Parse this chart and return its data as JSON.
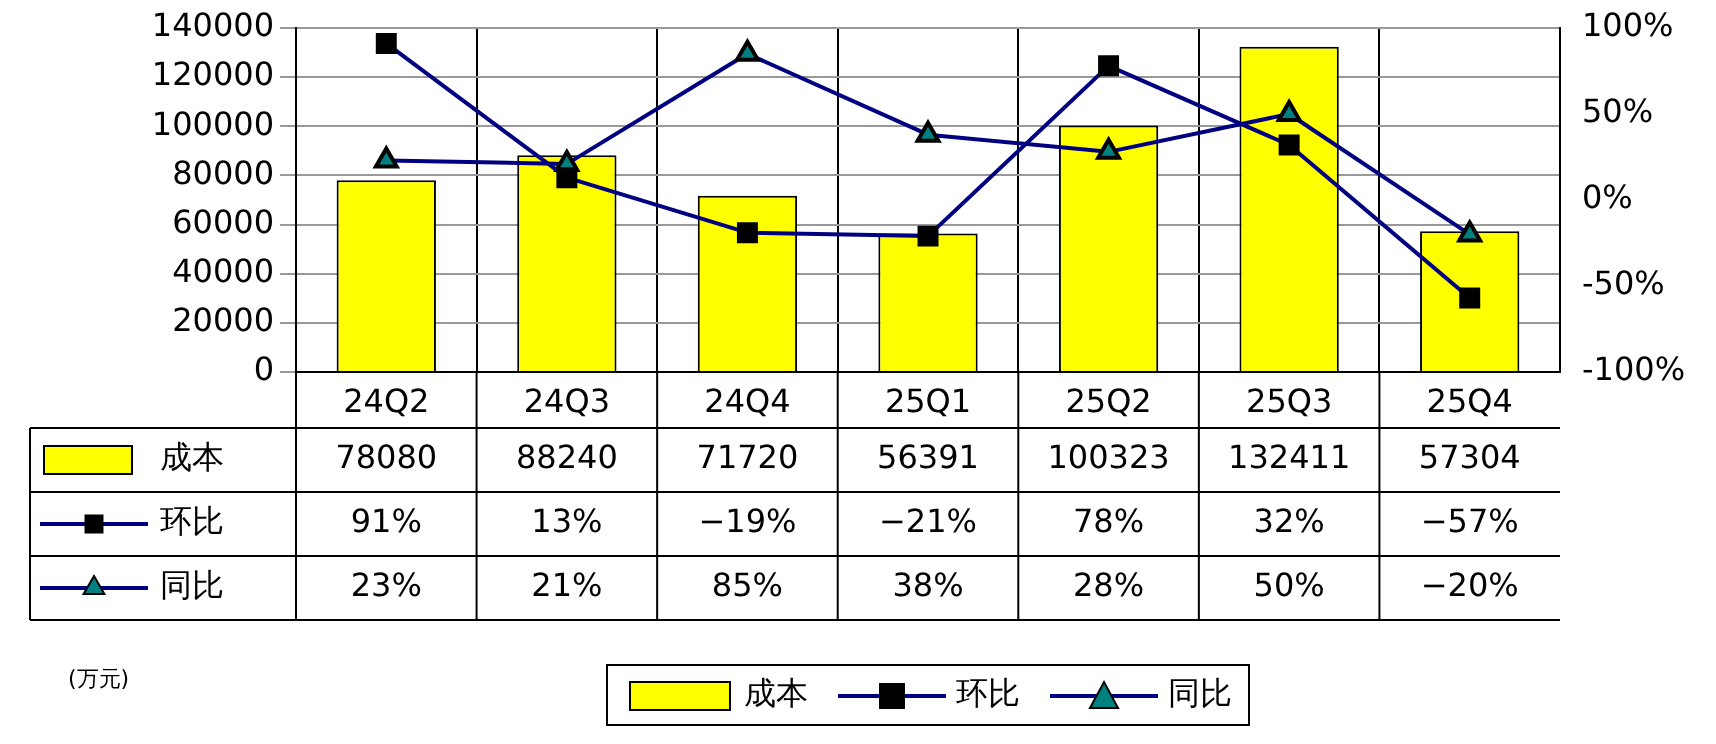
{
  "chart_data": {
    "type": "bar",
    "categories": [
      "24Q2",
      "24Q3",
      "24Q4",
      "25Q1",
      "25Q2",
      "25Q3",
      "25Q4"
    ],
    "series": [
      {
        "name": "成本",
        "color": "#ffff00",
        "values": [
          78080,
          88240,
          71720,
          56391,
          100323,
          132411,
          57304
        ],
        "value_labels": [
          "78080",
          "88240",
          "71720",
          "56391",
          "100323",
          "132411",
          "57304"
        ]
      },
      {
        "name": "环比",
        "type": "line",
        "axis": "y2",
        "marker": "square",
        "color": "#000080",
        "values": [
          91,
          13,
          -19,
          -21,
          78,
          32,
          -57
        ],
        "value_labels": [
          "91%",
          "13%",
          "−19%",
          "−21%",
          "78%",
          "32%",
          "−57%"
        ]
      },
      {
        "name": "同比",
        "type": "line",
        "axis": "y2",
        "marker": "triangle",
        "color": "#000080",
        "values": [
          23,
          21,
          85,
          38,
          28,
          50,
          -20
        ],
        "value_labels": [
          "23%",
          "21%",
          "85%",
          "38%",
          "28%",
          "50%",
          "−20%"
        ]
      }
    ],
    "ylim": [
      0,
      140000
    ],
    "yticks": [
      0,
      20000,
      40000,
      60000,
      80000,
      100000,
      120000,
      140000
    ],
    "y2lim": [
      -100,
      100
    ],
    "y2ticks": [
      {
        "value": -100,
        "label": "-100%"
      },
      {
        "value": -50,
        "label": "-50%"
      },
      {
        "value": 0,
        "label": "0%"
      },
      {
        "value": 50,
        "label": "50%"
      },
      {
        "value": 100,
        "label": "100%"
      }
    ],
    "grid": true,
    "legend": "bottom",
    "annotations": [
      "(万元)"
    ]
  }
}
